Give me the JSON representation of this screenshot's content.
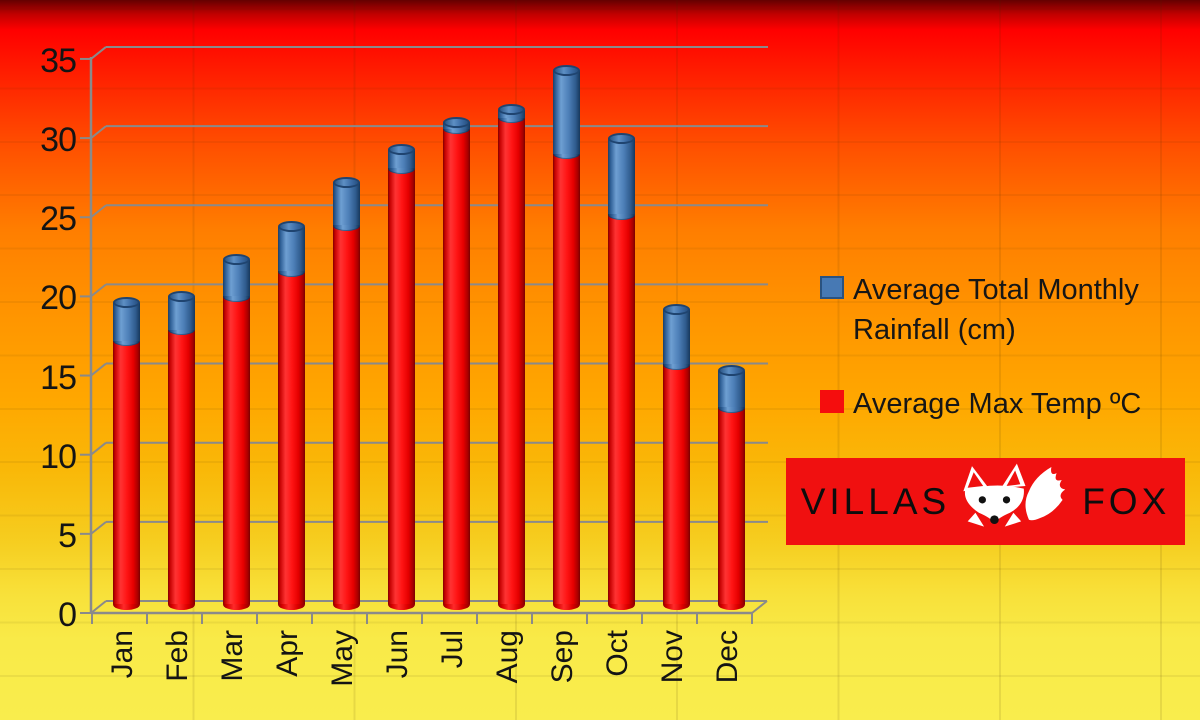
{
  "background": {
    "gradient_top_color": "#ff0000",
    "gradient_bottom_color": "#f9ed4d"
  },
  "chart_data": {
    "type": "bar",
    "subtype": "stacked-3d-cylinder",
    "title": "",
    "xlabel": "",
    "ylabel": "",
    "categories": [
      "Jan",
      "Feb",
      "Mar",
      "Apr",
      "May",
      "Jun",
      "Jul",
      "Aug",
      "Sep",
      "Oct",
      "Nov",
      "Dec"
    ],
    "series": [
      {
        "name": "Average Max Temp ºC",
        "color": "#ee0d0d",
        "values": [
          17.2,
          17.9,
          20.0,
          21.6,
          24.5,
          28.1,
          30.6,
          31.3,
          29.0,
          25.2,
          15.7,
          13.0
        ]
      },
      {
        "name": "Average Total Monthly Rainfall (cm)",
        "color": "#4779b4",
        "values": [
          2.4,
          2.1,
          2.3,
          2.8,
          2.7,
          1.2,
          0.4,
          0.5,
          5.3,
          4.8,
          3.5,
          2.3
        ]
      }
    ],
    "stacked": true,
    "ylim": [
      0,
      35
    ],
    "yticks": [
      "0",
      "5",
      "10",
      "15",
      "20",
      "25",
      "30",
      "35"
    ],
    "grid": true,
    "gridline_color": "#8a8a8a",
    "legend_position": "right"
  },
  "legend": {
    "items": [
      {
        "swatch_color": "#4779b4",
        "lines": [
          "Average Total Monthly",
          "Rainfall (cm)"
        ]
      },
      {
        "swatch_color": "#f50d0d",
        "lines": [
          "Average Max Temp ºC",
          ""
        ]
      }
    ]
  },
  "logo": {
    "bg_color": "#f01010",
    "villas": "VILLAS",
    "fox": "FOX"
  }
}
